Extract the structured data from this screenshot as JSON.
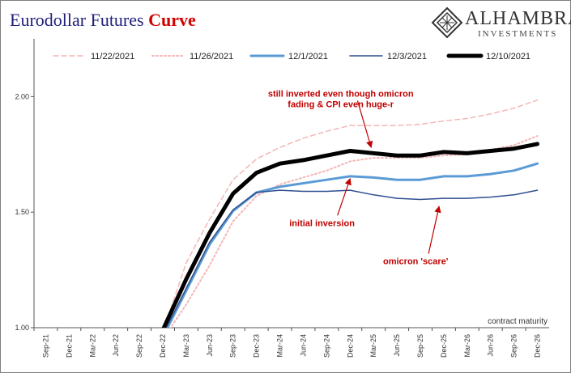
{
  "title_main": "Eurodollar Futures",
  "title_accent": "Curve",
  "logo": {
    "name": "ALHAMBRA",
    "sub": "INVESTMENTS"
  },
  "colors": {
    "title": "#1f1f7a",
    "accent": "#d40000",
    "annotation": "#c00000"
  },
  "chart_data": {
    "type": "line",
    "x": [
      "Sep-21",
      "Dec-21",
      "Mar-22",
      "Jun-22",
      "Sep-22",
      "Dec-22",
      "Mar-23",
      "Jun-23",
      "Sep-23",
      "Dec-23",
      "Mar-24",
      "Jun-24",
      "Sep-24",
      "Dec-24",
      "Mar-25",
      "Jun-25",
      "Sep-25",
      "Dec-25",
      "Mar-26",
      "Jun-26",
      "Sep-26",
      "Dec-26"
    ],
    "ylim": [
      1.0,
      2.25
    ],
    "yticks": [
      "1.00",
      "1.50",
      "2.00"
    ],
    "xlabel": "contract maturity",
    "legend": "top",
    "grid": false,
    "series": [
      {
        "name": "11/22/2021",
        "color": "#f4b6b6",
        "dash": "dashed",
        "width": 1.5,
        "values": [
          null,
          null,
          null,
          null,
          null,
          0.98,
          1.28,
          1.47,
          1.64,
          1.73,
          1.78,
          1.82,
          1.85,
          1.875,
          1.875,
          1.875,
          1.88,
          1.895,
          1.905,
          1.925,
          1.95,
          1.985
        ]
      },
      {
        "name": "11/26/2021",
        "color": "#f4b6b6",
        "dash": "dotted",
        "width": 2,
        "values": [
          null,
          null,
          null,
          null,
          null,
          0.95,
          1.1,
          1.27,
          1.46,
          1.57,
          1.62,
          1.65,
          1.68,
          1.72,
          1.735,
          1.735,
          1.735,
          1.745,
          1.75,
          1.77,
          1.79,
          1.83
        ]
      },
      {
        "name": "12/1/2021",
        "color": "#5b9bd5",
        "dash": "solid",
        "width": 3,
        "values": [
          null,
          null,
          null,
          null,
          null,
          0.96,
          1.16,
          1.36,
          1.505,
          1.585,
          1.61,
          1.625,
          1.64,
          1.655,
          1.65,
          1.64,
          1.64,
          1.655,
          1.655,
          1.665,
          1.68,
          1.71
        ]
      },
      {
        "name": "12/3/2021",
        "color": "#2f4f8f",
        "dash": "solid",
        "width": 1.5,
        "values": [
          null,
          null,
          null,
          null,
          null,
          0.97,
          1.17,
          1.37,
          1.51,
          1.585,
          1.595,
          1.59,
          1.59,
          1.595,
          1.575,
          1.56,
          1.555,
          1.56,
          1.56,
          1.565,
          1.575,
          1.595
        ]
      },
      {
        "name": "12/10/2021",
        "color": "#000000",
        "dash": "solid",
        "width": 5,
        "values": [
          null,
          null,
          null,
          null,
          null,
          0.99,
          1.21,
          1.41,
          1.58,
          1.67,
          1.71,
          1.725,
          1.745,
          1.765,
          1.755,
          1.745,
          1.745,
          1.76,
          1.755,
          1.765,
          1.775,
          1.795
        ]
      }
    ],
    "annotations": [
      {
        "text": "still inverted even though omicron",
        "x_index": 12.6,
        "y": 2.0,
        "arrow_to": [
          13.9,
          1.78
        ]
      },
      {
        "text": "fading & CPI even huge-r",
        "x_index": 12.6,
        "y": 1.955
      },
      {
        "text": "initial inversion",
        "x_index": 11.8,
        "y": 1.44,
        "arrow_to": [
          13.0,
          1.645
        ]
      },
      {
        "text": "omicron 'scare'",
        "x_index": 15.8,
        "y": 1.275,
        "arrow_to": [
          16.8,
          1.525
        ]
      }
    ]
  }
}
